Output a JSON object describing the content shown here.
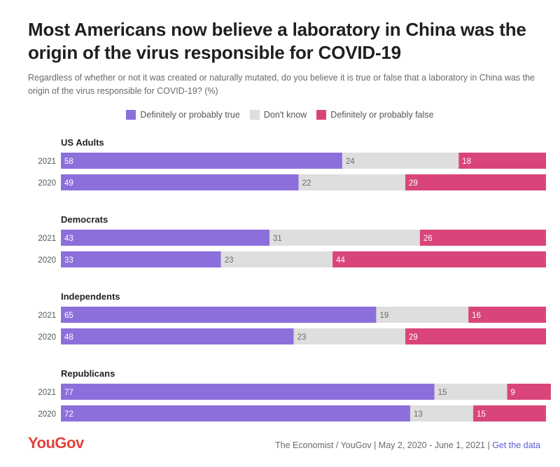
{
  "header": {
    "title": "Most Americans now believe a laboratory in China was the origin of the virus responsible for COVID-19",
    "subtitle": "Regardless of whether or not it was created or naturally mutated, do you believe it is true or false that a laboratory in China was the origin of the virus responsible for COVID-19? (%)"
  },
  "legend": [
    {
      "label": "Definitely or probably true",
      "color": "#8d6fdc"
    },
    {
      "label": "Don't know",
      "color": "#dedede"
    },
    {
      "label": "Definitely or probably false",
      "color": "#d9457a"
    }
  ],
  "footer": {
    "logo": "YouGov",
    "source": "The Economist / YouGov | May 2, 2020 - June 1, 2021 | ",
    "link": "Get the data"
  },
  "chart_data": {
    "type": "bar",
    "stacked": true,
    "orientation": "horizontal",
    "series_names": [
      "Definitely or probably true",
      "Don't know",
      "Definitely or probably false"
    ],
    "groups": [
      {
        "name": "US Adults",
        "rows": [
          {
            "year": "2021",
            "values": [
              58,
              24,
              18
            ]
          },
          {
            "year": "2020",
            "values": [
              49,
              22,
              29
            ]
          }
        ]
      },
      {
        "name": "Democrats",
        "rows": [
          {
            "year": "2021",
            "values": [
              43,
              31,
              26
            ]
          },
          {
            "year": "2020",
            "values": [
              33,
              23,
              44
            ]
          }
        ]
      },
      {
        "name": "Independents",
        "rows": [
          {
            "year": "2021",
            "values": [
              65,
              19,
              16
            ]
          },
          {
            "year": "2020",
            "values": [
              48,
              23,
              29
            ]
          }
        ]
      },
      {
        "name": "Republicans",
        "rows": [
          {
            "year": "2021",
            "values": [
              77,
              15,
              9
            ]
          },
          {
            "year": "2020",
            "values": [
              72,
              13,
              15
            ]
          }
        ]
      }
    ],
    "xlim": [
      0,
      100
    ]
  }
}
